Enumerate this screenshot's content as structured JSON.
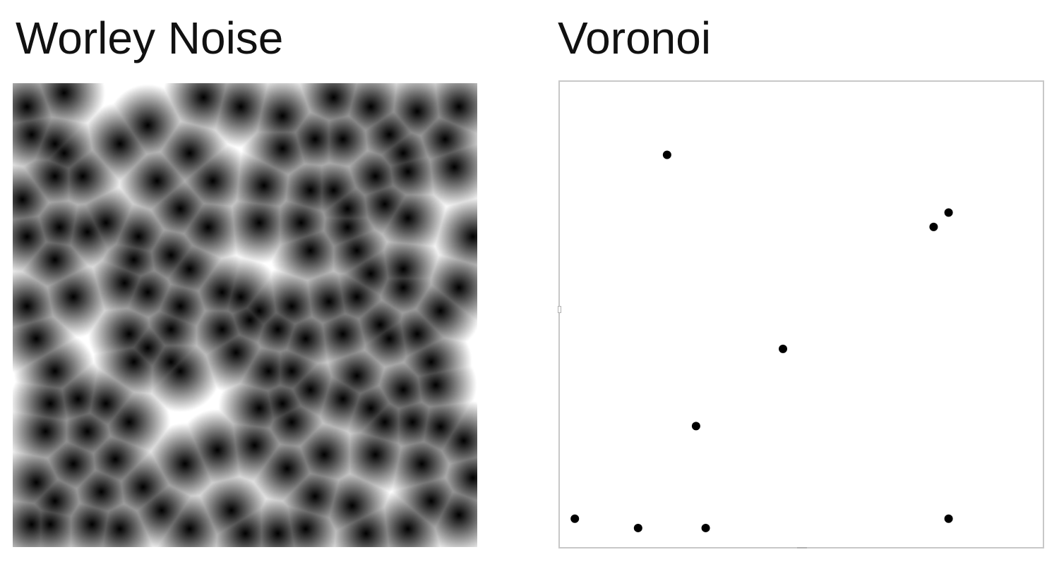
{
  "worley": {
    "title": "Worley Noise",
    "colors": {
      "near": "#000000",
      "far": "#ffffff"
    },
    "feature_points": [
      [
        0.03,
        0.05
      ],
      [
        0.11,
        0.02
      ],
      [
        0.29,
        0.09
      ],
      [
        0.41,
        0.03
      ],
      [
        0.49,
        0.05
      ],
      [
        0.58,
        0.07
      ],
      [
        0.69,
        0.03
      ],
      [
        0.77,
        0.05
      ],
      [
        0.87,
        0.06
      ],
      [
        0.96,
        0.05
      ],
      [
        0.04,
        0.11
      ],
      [
        0.09,
        0.13
      ],
      [
        0.11,
        0.15
      ],
      [
        0.23,
        0.13
      ],
      [
        0.38,
        0.15
      ],
      [
        0.58,
        0.14
      ],
      [
        0.65,
        0.12
      ],
      [
        0.71,
        0.12
      ],
      [
        0.81,
        0.11
      ],
      [
        0.84,
        0.15
      ],
      [
        0.93,
        0.12
      ],
      [
        0.02,
        0.25
      ],
      [
        0.09,
        0.2
      ],
      [
        0.15,
        0.2
      ],
      [
        0.31,
        0.21
      ],
      [
        0.43,
        0.21
      ],
      [
        0.54,
        0.22
      ],
      [
        0.64,
        0.23
      ],
      [
        0.69,
        0.23
      ],
      [
        0.78,
        0.2
      ],
      [
        0.85,
        0.19
      ],
      [
        0.95,
        0.18
      ],
      [
        0.03,
        0.33
      ],
      [
        0.1,
        0.31
      ],
      [
        0.16,
        0.32
      ],
      [
        0.2,
        0.3
      ],
      [
        0.27,
        0.33
      ],
      [
        0.36,
        0.27
      ],
      [
        0.42,
        0.31
      ],
      [
        0.53,
        0.3
      ],
      [
        0.62,
        0.3
      ],
      [
        0.72,
        0.27
      ],
      [
        0.8,
        0.26
      ],
      [
        0.85,
        0.29
      ],
      [
        0.09,
        0.38
      ],
      [
        0.26,
        0.38
      ],
      [
        0.34,
        0.37
      ],
      [
        0.38,
        0.4
      ],
      [
        0.64,
        0.36
      ],
      [
        0.72,
        0.31
      ],
      [
        0.74,
        0.36
      ],
      [
        0.77,
        0.41
      ],
      [
        0.84,
        0.4
      ],
      [
        0.99,
        0.33
      ],
      [
        0.03,
        0.48
      ],
      [
        0.13,
        0.46
      ],
      [
        0.24,
        0.43
      ],
      [
        0.29,
        0.45
      ],
      [
        0.36,
        0.48
      ],
      [
        0.45,
        0.45
      ],
      [
        0.49,
        0.46
      ],
      [
        0.53,
        0.49
      ],
      [
        0.6,
        0.48
      ],
      [
        0.68,
        0.47
      ],
      [
        0.74,
        0.46
      ],
      [
        0.84,
        0.44
      ],
      [
        0.96,
        0.44
      ],
      [
        0.05,
        0.55
      ],
      [
        0.25,
        0.54
      ],
      [
        0.34,
        0.53
      ],
      [
        0.45,
        0.53
      ],
      [
        0.51,
        0.51
      ],
      [
        0.57,
        0.53
      ],
      [
        0.63,
        0.55
      ],
      [
        0.71,
        0.54
      ],
      [
        0.79,
        0.52
      ],
      [
        0.87,
        0.54
      ],
      [
        0.92,
        0.49
      ],
      [
        0.09,
        0.62
      ],
      [
        0.26,
        0.6
      ],
      [
        0.29,
        0.57
      ],
      [
        0.34,
        0.6
      ],
      [
        0.36,
        0.62
      ],
      [
        0.48,
        0.58
      ],
      [
        0.55,
        0.62
      ],
      [
        0.6,
        0.62
      ],
      [
        0.74,
        0.63
      ],
      [
        0.81,
        0.55
      ],
      [
        0.9,
        0.6
      ],
      [
        0.08,
        0.69
      ],
      [
        0.14,
        0.68
      ],
      [
        0.2,
        0.69
      ],
      [
        0.53,
        0.7
      ],
      [
        0.58,
        0.69
      ],
      [
        0.64,
        0.66
      ],
      [
        0.71,
        0.68
      ],
      [
        0.77,
        0.7
      ],
      [
        0.84,
        0.66
      ],
      [
        0.91,
        0.65
      ],
      [
        0.07,
        0.75
      ],
      [
        0.16,
        0.75
      ],
      [
        0.25,
        0.73
      ],
      [
        0.52,
        0.78
      ],
      [
        0.6,
        0.73
      ],
      [
        0.8,
        0.73
      ],
      [
        0.86,
        0.73
      ],
      [
        0.92,
        0.74
      ],
      [
        0.97,
        0.77
      ],
      [
        0.13,
        0.82
      ],
      [
        0.22,
        0.81
      ],
      [
        0.37,
        0.82
      ],
      [
        0.44,
        0.79
      ],
      [
        0.59,
        0.83
      ],
      [
        0.67,
        0.8
      ],
      [
        0.78,
        0.8
      ],
      [
        0.88,
        0.82
      ],
      [
        0.99,
        0.85
      ],
      [
        0.05,
        0.86
      ],
      [
        0.09,
        0.9
      ],
      [
        0.19,
        0.88
      ],
      [
        0.28,
        0.87
      ],
      [
        0.47,
        0.92
      ],
      [
        0.65,
        0.89
      ],
      [
        0.73,
        0.91
      ],
      [
        0.9,
        0.9
      ],
      [
        0.04,
        0.95
      ],
      [
        0.08,
        0.95
      ],
      [
        0.17,
        0.95
      ],
      [
        0.23,
        0.96
      ],
      [
        0.32,
        0.92
      ],
      [
        0.38,
        0.96
      ],
      [
        0.5,
        0.97
      ],
      [
        0.57,
        0.97
      ],
      [
        0.63,
        0.96
      ],
      [
        0.76,
        0.97
      ],
      [
        0.85,
        0.96
      ],
      [
        0.96,
        0.93
      ]
    ]
  },
  "voronoi": {
    "title": "Voronoi",
    "colors": {
      "site": "#000000",
      "background": "#ffffff",
      "border": "#c8c8c8"
    },
    "sites": [
      [
        0.222,
        0.157
      ],
      [
        0.805,
        0.281
      ],
      [
        0.774,
        0.312
      ],
      [
        0.462,
        0.574
      ],
      [
        0.282,
        0.74
      ],
      [
        0.031,
        0.939
      ],
      [
        0.162,
        0.959
      ],
      [
        0.302,
        0.959
      ],
      [
        0.805,
        0.939
      ]
    ]
  }
}
